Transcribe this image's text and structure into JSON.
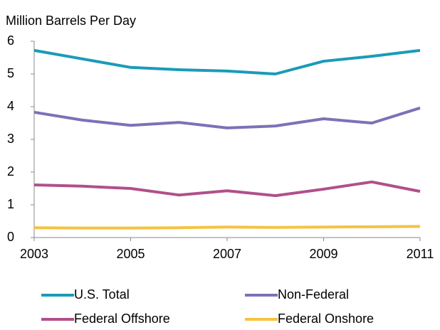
{
  "chart_data": {
    "type": "line",
    "title": "Million Barrels Per Day",
    "x": [
      2003,
      2004,
      2005,
      2006,
      2007,
      2008,
      2009,
      2010,
      2011
    ],
    "xlim": [
      2003,
      2011
    ],
    "xticks": [
      2003,
      2005,
      2007,
      2009,
      2011
    ],
    "ylim": [
      0,
      6
    ],
    "yticks": [
      0,
      1,
      2,
      3,
      4,
      5,
      6
    ],
    "grid": false,
    "legend": "bottom",
    "series": [
      {
        "name": "U.S. Total",
        "color": "#1a9bb8",
        "values": [
          5.72,
          5.46,
          5.2,
          5.13,
          5.09,
          5.0,
          5.39,
          5.54,
          5.72
        ]
      },
      {
        "name": "Non-Federal",
        "color": "#7b72b8",
        "values": [
          3.83,
          3.59,
          3.43,
          3.52,
          3.35,
          3.41,
          3.63,
          3.5,
          3.96
        ]
      },
      {
        "name": "Federal Offshore",
        "color": "#b0508a",
        "values": [
          1.61,
          1.57,
          1.5,
          1.3,
          1.43,
          1.28,
          1.48,
          1.7,
          1.41
        ]
      },
      {
        "name": "Federal Onshore",
        "color": "#f5c342",
        "values": [
          0.3,
          0.29,
          0.29,
          0.3,
          0.32,
          0.31,
          0.32,
          0.33,
          0.34
        ]
      }
    ]
  }
}
